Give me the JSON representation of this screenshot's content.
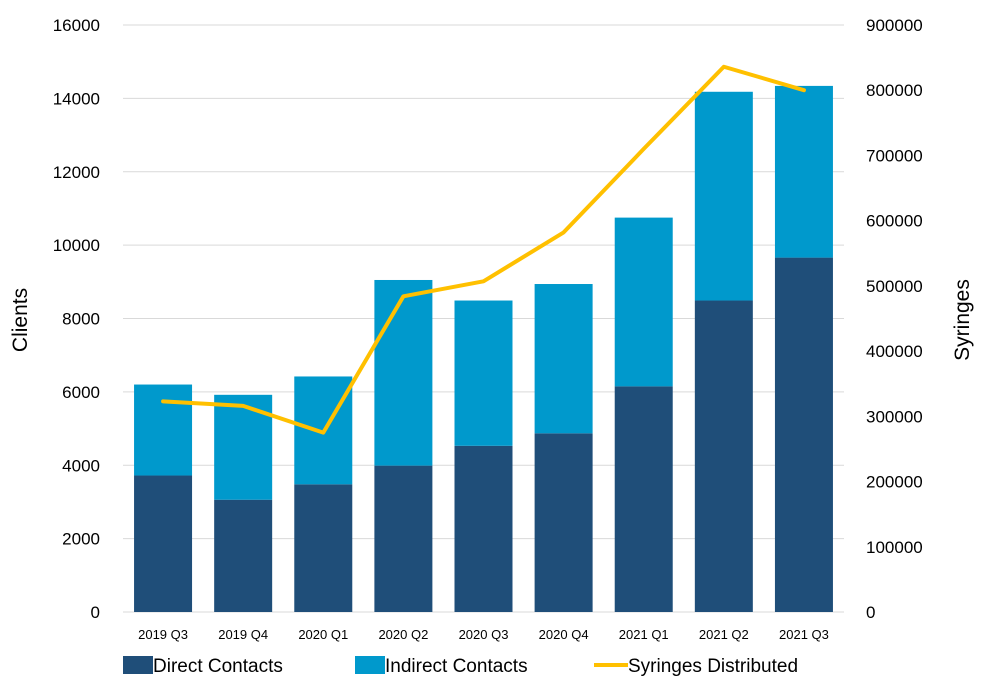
{
  "chart_data": {
    "type": "bar",
    "stacked": true,
    "categories": [
      "2019 Q3",
      "2019 Q4",
      "2020 Q1",
      "2020 Q2",
      "2020 Q3",
      "2020 Q4",
      "2021 Q1",
      "2021 Q2",
      "2021 Q3"
    ],
    "series": [
      {
        "name": "Direct Contacts",
        "type": "bar",
        "axis": "left",
        "color": "#1f4e79",
        "values": [
          3720,
          3060,
          3480,
          3990,
          4530,
          4870,
          6150,
          8490,
          9660
        ]
      },
      {
        "name": "Indirect Contacts",
        "type": "bar",
        "axis": "left",
        "color": "#0099cc",
        "values": [
          2480,
          2860,
          2940,
          5060,
          3960,
          4070,
          4600,
          5690,
          4680
        ]
      },
      {
        "name": "Syringes Distributed",
        "type": "line",
        "axis": "right",
        "color": "#ffc000",
        "values": [
          323000,
          316000,
          275000,
          484000,
          507000,
          582000,
          710000,
          836000,
          800000
        ]
      }
    ],
    "ylabel": "Clients",
    "y2label": "Syringes",
    "ylim": [
      0,
      16000
    ],
    "y2lim": [
      0,
      900000
    ],
    "yticks": [
      "0",
      "2000",
      "4000",
      "6000",
      "8000",
      "10000",
      "12000",
      "14000",
      "16000"
    ],
    "y2ticks": [
      "0",
      "100000",
      "200000",
      "300000",
      "400000",
      "500000",
      "600000",
      "700000",
      "800000",
      "900000"
    ],
    "grid": true,
    "legend_position": "bottom"
  }
}
